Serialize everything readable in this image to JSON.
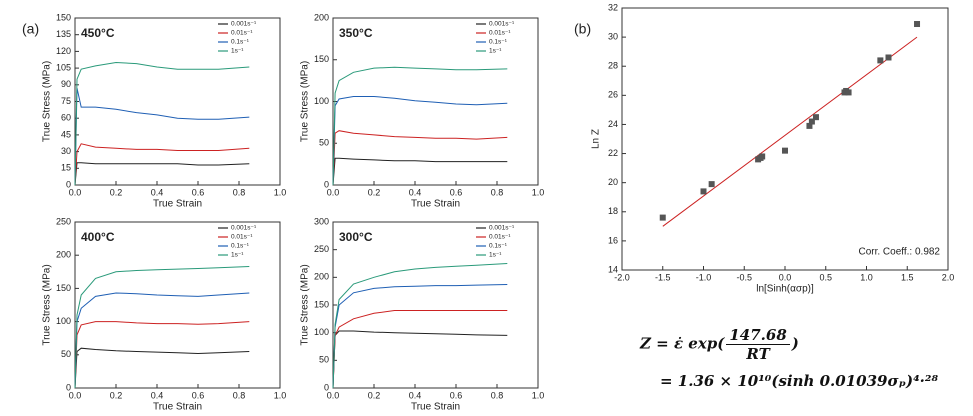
{
  "panel_labels": [
    "(a)",
    "(b)"
  ],
  "equation": {
    "line1_left": "Z = ε̇ exp(",
    "numerator": "147.68",
    "denominator": "RT",
    "line1_right": ")",
    "line2": "= 1.36 × 10¹⁰(sinh 0.01039σₚ)⁴·²⁸"
  },
  "chart_data": [
    {
      "type": "line",
      "title": "450°C",
      "x_label": "True Strain",
      "y_label": "True Stress (MPa)",
      "xlim": [
        0,
        1
      ],
      "xticks": [
        {
          "value": 0,
          "label": "0.0"
        },
        0.2,
        0.4,
        0.6,
        0.8,
        {
          "value": 1,
          "label": "1.0"
        }
      ],
      "ylim": [
        0,
        150
      ],
      "yticks": [
        0,
        15,
        30,
        45,
        60,
        75,
        90,
        105,
        120,
        135,
        150
      ],
      "legend": "top-right",
      "series": [
        {
          "name": "0.001s⁻¹",
          "color": "#222222",
          "x": [
            0,
            0.01,
            0.03,
            0.1,
            0.2,
            0.3,
            0.4,
            0.5,
            0.6,
            0.7,
            0.85
          ],
          "values": [
            0,
            20,
            20,
            19,
            19,
            19,
            19,
            19,
            18,
            18,
            19
          ]
        },
        {
          "name": "0.01s⁻¹",
          "color": "#cc2222",
          "x": [
            0,
            0.01,
            0.03,
            0.1,
            0.2,
            0.3,
            0.4,
            0.5,
            0.6,
            0.7,
            0.85
          ],
          "values": [
            0,
            30,
            37,
            34,
            33,
            32,
            32,
            31,
            31,
            31,
            33
          ]
        },
        {
          "name": "0.1s⁻¹",
          "color": "#1f5fb4",
          "x": [
            0,
            0.01,
            0.03,
            0.1,
            0.2,
            0.3,
            0.4,
            0.5,
            0.6,
            0.7,
            0.85
          ],
          "values": [
            0,
            87,
            70,
            70,
            68,
            65,
            63,
            60,
            59,
            59,
            61
          ]
        },
        {
          "name": "1s⁻¹",
          "color": "#2a9a7a",
          "x": [
            0,
            0.01,
            0.03,
            0.1,
            0.2,
            0.3,
            0.4,
            0.5,
            0.6,
            0.7,
            0.85
          ],
          "values": [
            0,
            95,
            104,
            107,
            110,
            109,
            106,
            104,
            104,
            104,
            106
          ]
        }
      ]
    },
    {
      "type": "line",
      "title": "350°C",
      "x_label": "True Strain",
      "y_label": "True Stress (MPa)",
      "xlim": [
        0,
        1
      ],
      "xticks": [
        {
          "value": 0,
          "label": "0.0"
        },
        0.2,
        0.4,
        0.6,
        0.8,
        {
          "value": 1,
          "label": "1.0"
        }
      ],
      "ylim": [
        0,
        200
      ],
      "yticks": [
        0,
        50,
        100,
        150,
        200
      ],
      "legend": "top-right",
      "series": [
        {
          "name": "0.001s⁻¹",
          "color": "#222222",
          "x": [
            0,
            0.01,
            0.03,
            0.1,
            0.2,
            0.3,
            0.4,
            0.5,
            0.6,
            0.7,
            0.85
          ],
          "values": [
            0,
            32,
            32,
            31,
            30,
            29,
            29,
            28,
            28,
            28,
            28
          ]
        },
        {
          "name": "0.01s⁻¹",
          "color": "#cc2222",
          "x": [
            0,
            0.01,
            0.03,
            0.1,
            0.2,
            0.3,
            0.4,
            0.5,
            0.6,
            0.7,
            0.85
          ],
          "values": [
            0,
            62,
            65,
            62,
            60,
            58,
            57,
            56,
            56,
            55,
            57
          ]
        },
        {
          "name": "0.1s⁻¹",
          "color": "#1f5fb4",
          "x": [
            0,
            0.01,
            0.03,
            0.1,
            0.2,
            0.3,
            0.4,
            0.5,
            0.6,
            0.7,
            0.85
          ],
          "values": [
            0,
            95,
            103,
            106,
            106,
            104,
            101,
            99,
            97,
            96,
            98
          ]
        },
        {
          "name": "1s⁻¹",
          "color": "#2a9a7a",
          "x": [
            0,
            0.01,
            0.03,
            0.1,
            0.2,
            0.3,
            0.4,
            0.5,
            0.6,
            0.7,
            0.85
          ],
          "values": [
            0,
            110,
            125,
            135,
            140,
            141,
            140,
            139,
            138,
            138,
            139
          ]
        }
      ]
    },
    {
      "type": "line",
      "title": "400°C",
      "x_label": "True Strain",
      "y_label": "True Stress (MPa)",
      "xlim": [
        0,
        1
      ],
      "xticks": [
        {
          "value": 0,
          "label": "0.0"
        },
        0.2,
        0.4,
        0.6,
        0.8,
        {
          "value": 1,
          "label": "1.0"
        }
      ],
      "ylim": [
        0,
        250
      ],
      "yticks": [
        0,
        50,
        100,
        150,
        200,
        250
      ],
      "legend": "top-right",
      "series": [
        {
          "name": "0.001s⁻¹",
          "color": "#222222",
          "x": [
            0,
            0.01,
            0.03,
            0.1,
            0.2,
            0.3,
            0.4,
            0.5,
            0.6,
            0.7,
            0.85
          ],
          "values": [
            0,
            55,
            60,
            58,
            56,
            55,
            54,
            53,
            52,
            53,
            55
          ]
        },
        {
          "name": "0.01s⁻¹",
          "color": "#cc2222",
          "x": [
            0,
            0.01,
            0.03,
            0.1,
            0.2,
            0.3,
            0.4,
            0.5,
            0.6,
            0.7,
            0.85
          ],
          "values": [
            0,
            80,
            95,
            100,
            100,
            98,
            97,
            97,
            96,
            97,
            100
          ]
        },
        {
          "name": "0.1s⁻¹",
          "color": "#1f5fb4",
          "x": [
            0,
            0.01,
            0.03,
            0.1,
            0.2,
            0.3,
            0.4,
            0.5,
            0.6,
            0.7,
            0.85
          ],
          "values": [
            0,
            100,
            120,
            138,
            143,
            142,
            140,
            139,
            138,
            140,
            143
          ]
        },
        {
          "name": "1s⁻¹",
          "color": "#2a9a7a",
          "x": [
            0,
            0.01,
            0.03,
            0.1,
            0.2,
            0.3,
            0.4,
            0.5,
            0.6,
            0.7,
            0.85
          ],
          "values": [
            0,
            110,
            140,
            165,
            175,
            177,
            178,
            179,
            180,
            181,
            183
          ]
        }
      ]
    },
    {
      "type": "line",
      "title": "300°C",
      "x_label": "True Strain",
      "y_label": "True Stress (MPa)",
      "xlim": [
        0,
        1
      ],
      "xticks": [
        {
          "value": 0,
          "label": "0.0"
        },
        0.2,
        0.4,
        0.6,
        0.8,
        {
          "value": 1,
          "label": "1.0"
        }
      ],
      "ylim": [
        0,
        300
      ],
      "yticks": [
        0,
        50,
        100,
        150,
        200,
        250,
        300
      ],
      "legend": "top-right",
      "series": [
        {
          "name": "0.001s⁻¹",
          "color": "#222222",
          "x": [
            0,
            0.01,
            0.03,
            0.1,
            0.2,
            0.3,
            0.4,
            0.5,
            0.6,
            0.7,
            0.85
          ],
          "values": [
            0,
            95,
            103,
            103,
            101,
            100,
            99,
            98,
            97,
            96,
            95
          ]
        },
        {
          "name": "0.01s⁻¹",
          "color": "#cc2222",
          "x": [
            0,
            0.01,
            0.03,
            0.1,
            0.2,
            0.3,
            0.4,
            0.5,
            0.6,
            0.7,
            0.85
          ],
          "values": [
            0,
            95,
            110,
            125,
            135,
            140,
            140,
            140,
            140,
            140,
            140
          ]
        },
        {
          "name": "0.1s⁻¹",
          "color": "#1f5fb4",
          "x": [
            0,
            0.01,
            0.03,
            0.1,
            0.2,
            0.3,
            0.4,
            0.5,
            0.6,
            0.7,
            0.85
          ],
          "values": [
            0,
            110,
            150,
            172,
            180,
            183,
            184,
            185,
            185,
            186,
            187
          ]
        },
        {
          "name": "1s⁻¹",
          "color": "#2a9a7a",
          "x": [
            0,
            0.01,
            0.03,
            0.1,
            0.2,
            0.3,
            0.4,
            0.5,
            0.6,
            0.7,
            0.85
          ],
          "values": [
            0,
            115,
            160,
            188,
            200,
            210,
            215,
            218,
            220,
            222,
            225
          ]
        }
      ]
    },
    {
      "type": "scatter",
      "x_label": "ln[Sinh(ασp)]",
      "y_label": "Ln Z",
      "annotation": "Corr. Coeff.: 0.982",
      "xlim": [
        -2,
        2
      ],
      "xticks": [
        {
          "value": -2,
          "label": "-2.0"
        },
        -1.5,
        {
          "value": -1,
          "label": "-1.0"
        },
        -0.5,
        {
          "value": 0,
          "label": "0.0"
        },
        0.5,
        {
          "value": 1,
          "label": "1.0"
        },
        1.5,
        {
          "value": 2,
          "label": "2.0"
        }
      ],
      "ylim": [
        14,
        32
      ],
      "yticks": [
        14,
        16,
        18,
        20,
        22,
        24,
        26,
        28,
        30,
        32
      ],
      "color": "#555555",
      "x": [
        -1.5,
        -1.0,
        -0.9,
        -0.33,
        -0.3,
        -0.28,
        0.0,
        0.3,
        0.33,
        0.38,
        0.73,
        0.75,
        0.78,
        1.17,
        1.27,
        1.62
      ],
      "values": [
        17.6,
        19.4,
        19.9,
        21.6,
        21.7,
        21.8,
        22.2,
        23.9,
        24.2,
        24.5,
        26.2,
        26.3,
        26.2,
        28.4,
        28.6,
        30.9
      ],
      "fit": {
        "color": "#cc2222",
        "x": [
          -1.5,
          1.62
        ],
        "values": [
          17.0,
          30.0
        ]
      }
    }
  ]
}
